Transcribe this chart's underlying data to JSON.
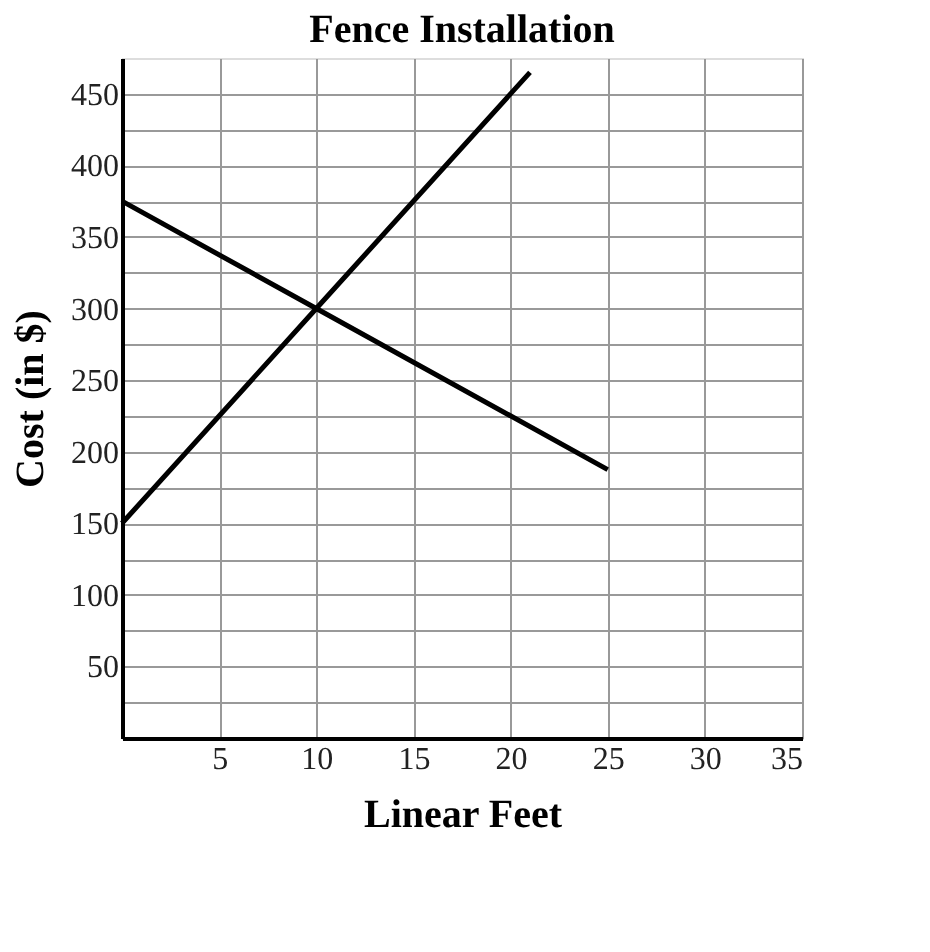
{
  "chart_data": {
    "type": "line",
    "title": "Fence Installation",
    "xlabel": "Linear Feet",
    "ylabel": "Cost (in $)",
    "series": [
      {
        "color": "#000000",
        "x": [
          0,
          10,
          21
        ],
        "values": [
          150,
          300,
          465
        ]
      },
      {
        "color": "#000000",
        "x": [
          0,
          10,
          25
        ],
        "values": [
          375,
          300,
          187.5
        ]
      }
    ],
    "xlim": [
      0,
      35
    ],
    "xticks": [
      5,
      10,
      15,
      20,
      25,
      30,
      35
    ],
    "ylim": [
      0,
      475
    ],
    "yticks": [
      {
        "value": 25,
        "label": null
      },
      50,
      {
        "value": 75,
        "label": null
      },
      100,
      {
        "value": 125,
        "label": null
      },
      150,
      {
        "value": 175,
        "label": null
      },
      200,
      {
        "value": 225,
        "label": null
      },
      250,
      {
        "value": 275,
        "label": null
      },
      300,
      {
        "value": 325,
        "label": null
      },
      350,
      {
        "value": 375,
        "label": null
      },
      400,
      {
        "value": 425,
        "label": null
      },
      450
    ],
    "grid": true,
    "legend": false,
    "marker": "none",
    "line_style": "solid"
  }
}
